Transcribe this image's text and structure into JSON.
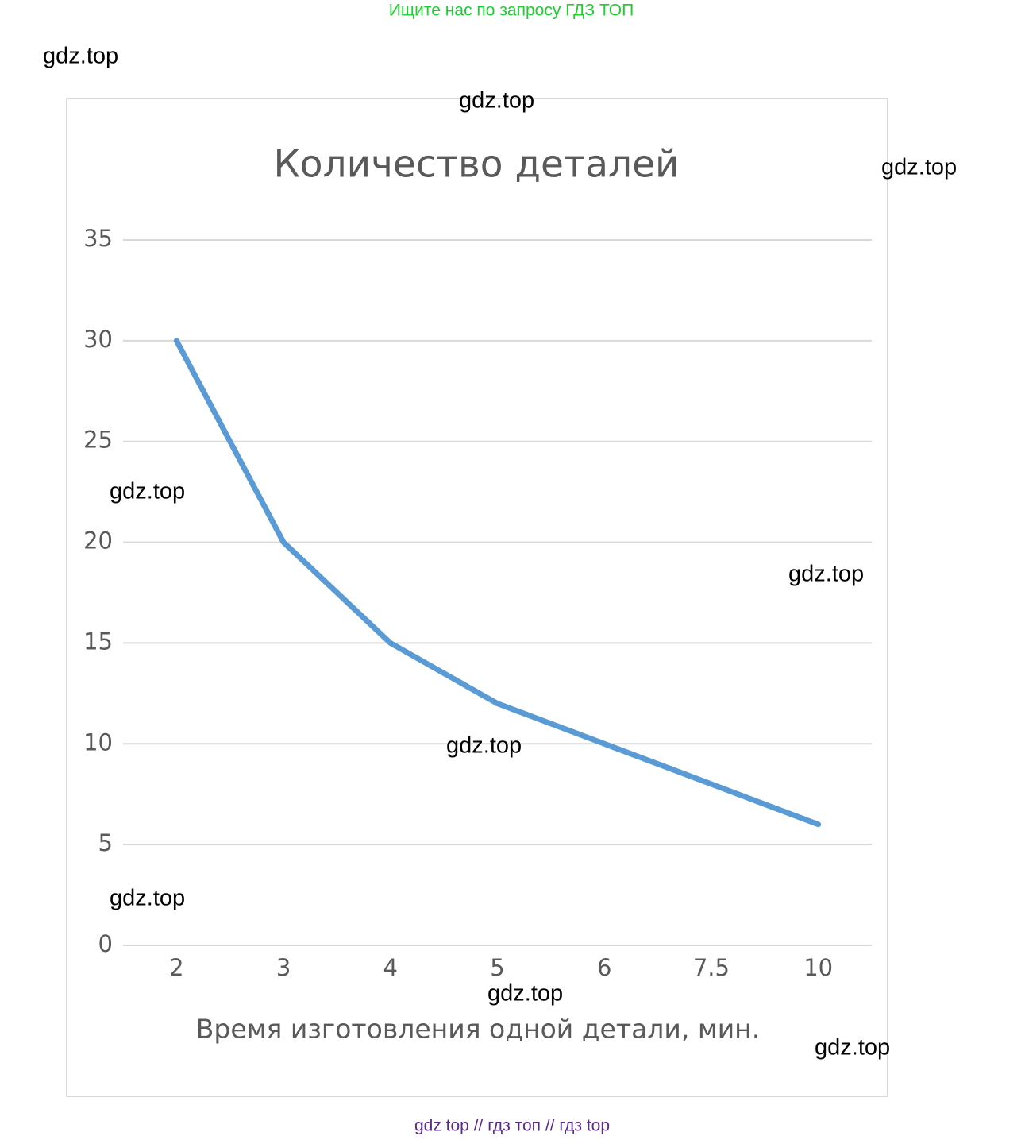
{
  "header": "Ищите нас по запросу ГДЗ ТОП",
  "footer": "gdz top  //  гдз топ  //  гдз top",
  "watermarks": [
    "gdz.top",
    "gdz.top",
    "gdz.top",
    "gdz.top",
    "gdz.top",
    "gdz.top",
    "gdz.top",
    "gdz.top",
    "gdz.top"
  ],
  "chart_data": {
    "type": "line",
    "title": "Количество деталей",
    "x_label": "Время изготовления одной детали, мин.",
    "categories": [
      "2",
      "3",
      "4",
      "5",
      "6",
      "7.5",
      "10"
    ],
    "values": [
      30,
      20,
      15,
      12,
      10,
      8,
      6
    ],
    "color": "#5b9bd5",
    "ylim": [
      0,
      35
    ],
    "yticks": [
      0,
      5,
      10,
      15,
      20,
      25,
      30,
      35
    ],
    "grid": true
  }
}
